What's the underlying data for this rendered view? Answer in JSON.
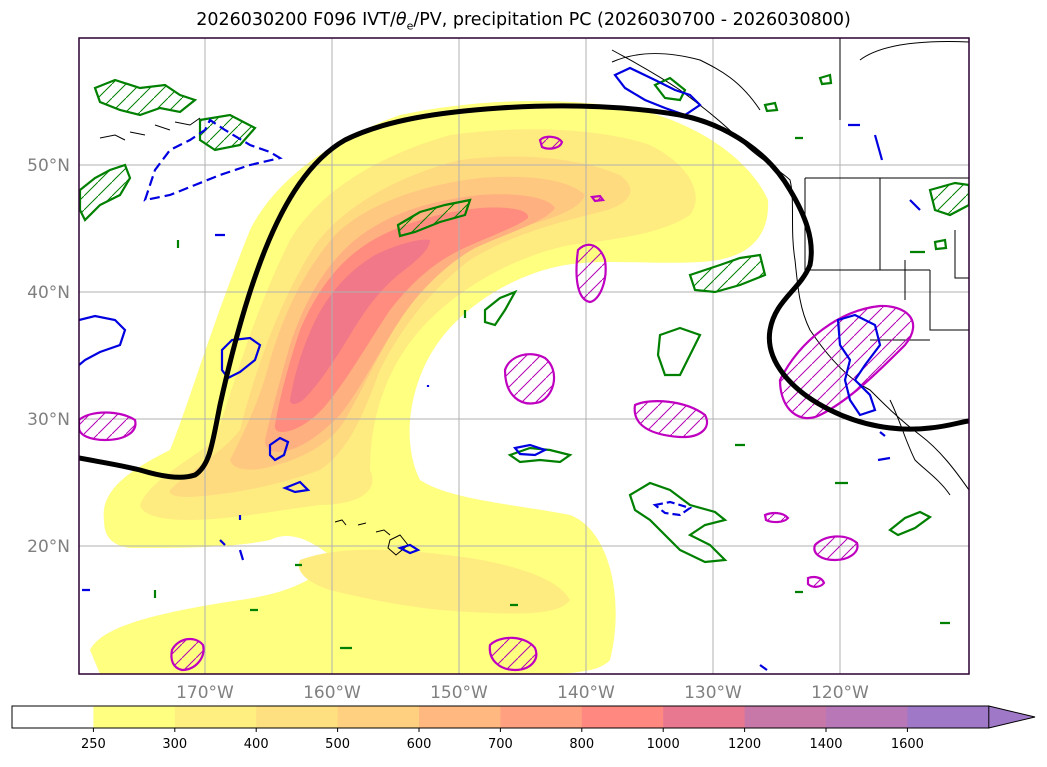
{
  "title": {
    "prefix": "2026030200 F096 IVT/",
    "theta": "θ",
    "theta_sub": "e",
    "suffix": "/PV, precipitation PC (2026030700 - 2026030800)"
  },
  "map": {
    "lat_ticks": [
      "50°N",
      "40°N",
      "30°N",
      "20°N"
    ],
    "lon_ticks": [
      "170°W",
      "160°W",
      "150°W",
      "140°W",
      "130°W",
      "120°W"
    ]
  },
  "colorbar": {
    "labels": [
      "250",
      "300",
      "400",
      "500",
      "600",
      "700",
      "800",
      "1000",
      "1200",
      "1400",
      "1600"
    ],
    "colors": [
      "#ffffff",
      "#ffff80",
      "#ffef80",
      "#ffe080",
      "#ffd080",
      "#ffb880",
      "#ffa080",
      "#ff8880",
      "#e87890",
      "#c878a8",
      "#b878b8",
      "#a078c8"
    ]
  }
}
